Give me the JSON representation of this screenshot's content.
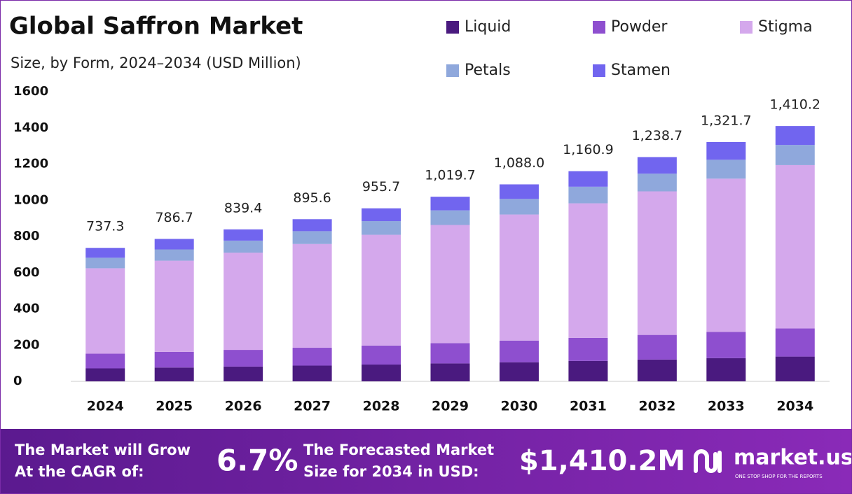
{
  "chart_data": {
    "type": "stacked-bar",
    "title": "Global Saffron Market",
    "subtitle": "Size, by Form, 2024–2034 (USD Million)",
    "categories": [
      "2024",
      "2025",
      "2026",
      "2027",
      "2028",
      "2029",
      "2030",
      "2031",
      "2032",
      "2033",
      "2034"
    ],
    "series": [
      {
        "name": "Liquid",
        "color": "#4a1a7f",
        "values": [
          71.5,
          76.3,
          81.4,
          86.9,
          92.7,
          98.9,
          105.5,
          112.6,
          120.2,
          128.2,
          136.8
        ]
      },
      {
        "name": "Powder",
        "color": "#8e4fcf",
        "values": [
          81.1,
          86.5,
          92.3,
          98.5,
          105.1,
          112.2,
          119.7,
          127.7,
          136.3,
          145.4,
          155.1
        ]
      },
      {
        "name": "Stigma",
        "color": "#d4a8ec",
        "values": [
          471.9,
          503.5,
          537.2,
          573.2,
          611.6,
          652.6,
          696.3,
          743.0,
          792.8,
          845.9,
          902.5
        ]
      },
      {
        "name": "Petals",
        "color": "#8fa8dc",
        "values": [
          58.2,
          62.1,
          66.3,
          70.8,
          75.5,
          80.6,
          86.0,
          91.7,
          97.9,
          104.4,
          111.4
        ]
      },
      {
        "name": "Stamen",
        "color": "#7165ef",
        "values": [
          54.6,
          58.3,
          62.2,
          66.2,
          70.8,
          75.4,
          80.5,
          85.9,
          91.5,
          97.8,
          104.4
        ]
      }
    ],
    "totals": {
      "values": [
        737.3,
        786.7,
        839.4,
        895.6,
        955.7,
        1019.7,
        1088.0,
        1160.9,
        1238.7,
        1321.7,
        1410.2
      ],
      "value_labels": [
        "737.3",
        "786.7",
        "839.4",
        "895.6",
        "955.7",
        "1,019.7",
        "1,088.0",
        "1,160.9",
        "1,238.7",
        "1,321.7",
        "1,410.2"
      ]
    },
    "ylim": [
      0,
      1600
    ],
    "yticks": [
      0,
      200,
      400,
      600,
      800,
      1000,
      1200,
      1400,
      1600
    ],
    "grid": false
  },
  "footer": {
    "cagr_label": [
      "The Market will Grow",
      "At the CAGR of:"
    ],
    "cagr": "6.7%",
    "forecast_label": [
      "The Forecasted Market",
      "Size for 2034 in USD:"
    ],
    "forecast": "$1,410.2M",
    "brand": "market.us",
    "tagline": "ONE STOP SHOP FOR THE REPORTS"
  }
}
